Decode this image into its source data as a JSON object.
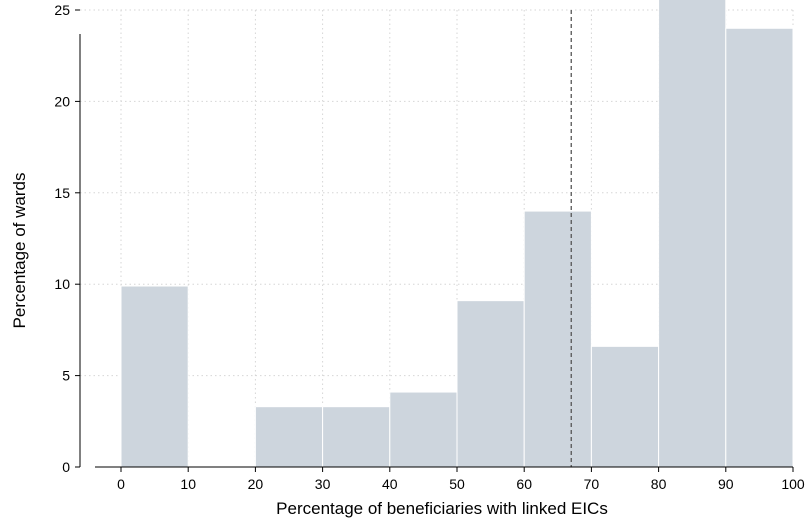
{
  "chart_data": {
    "type": "bar",
    "subtype": "histogram",
    "xlabel": "Percentage of beneficiaries with linked EICs",
    "ylabel": "Percentage of wards",
    "xlim": [
      0,
      100
    ],
    "ylim": [
      0,
      25
    ],
    "x_ticks": [
      "0",
      "10",
      "20",
      "30",
      "40",
      "50",
      "60",
      "70",
      "80",
      "90",
      "100"
    ],
    "y_ticks": [
      "0",
      "5",
      "10",
      "15",
      "20",
      "25"
    ],
    "bins": [
      {
        "start": 0,
        "end": 10,
        "value": 9.9
      },
      {
        "start": 10,
        "end": 20,
        "value": 0
      },
      {
        "start": 20,
        "end": 30,
        "value": 3.3
      },
      {
        "start": 30,
        "end": 40,
        "value": 3.3
      },
      {
        "start": 40,
        "end": 50,
        "value": 4.1
      },
      {
        "start": 50,
        "end": 60,
        "value": 9.1
      },
      {
        "start": 60,
        "end": 70,
        "value": 14.0
      },
      {
        "start": 70,
        "end": 80,
        "value": 6.6
      },
      {
        "start": 80,
        "end": 90,
        "value": 25.6
      },
      {
        "start": 90,
        "end": 100,
        "value": 24.0
      }
    ],
    "reference_line": {
      "x": 67,
      "style": "dashed"
    },
    "grid": true,
    "colors": {
      "bar": "#cdd5dd",
      "bar_edge": "#ffffff",
      "grid": "#d6d6d6",
      "reference": "#555555"
    }
  }
}
